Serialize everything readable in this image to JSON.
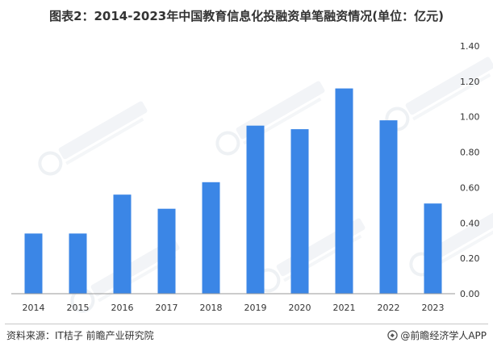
{
  "title": "图表2：2014-2023年中国教育信息化投融资单笔融资情况(单位：亿元)",
  "source": "资料来源：IT桔子 前瞻产业研究院",
  "brand": "@前瞻经济学人APP",
  "colors": {
    "bar": "#3b86e6",
    "axis": "#9a9a9a",
    "text": "#333333"
  },
  "chart_data": {
    "type": "bar",
    "categories": [
      "2014",
      "2015",
      "2016",
      "2017",
      "2018",
      "2019",
      "2020",
      "2021",
      "2022",
      "2023"
    ],
    "values": [
      0.34,
      0.34,
      0.56,
      0.48,
      0.63,
      0.95,
      0.93,
      1.16,
      0.98,
      0.51
    ],
    "ylim": [
      0,
      1.4
    ],
    "yticks": [
      "0.00",
      "0.20",
      "0.40",
      "0.60",
      "0.80",
      "1.00",
      "1.20",
      "1.40"
    ],
    "y_axis_side": "right",
    "grid": false,
    "legend": "none"
  }
}
